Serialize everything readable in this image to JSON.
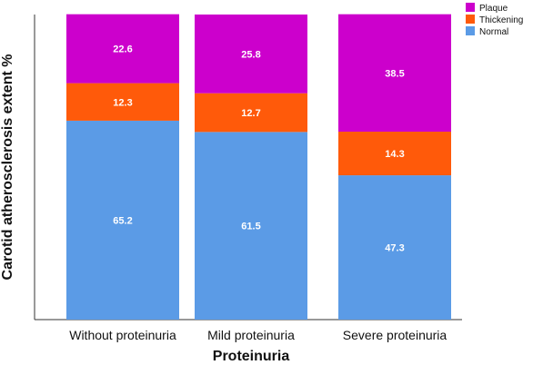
{
  "chart_data": {
    "type": "bar",
    "stacked": true,
    "categories": [
      "Without proteinuria",
      "Mild proteinuria",
      "Severe proteinuria"
    ],
    "series": [
      {
        "name": "Normal",
        "values": [
          65.2,
          61.5,
          47.3
        ],
        "color": "#5b9be6"
      },
      {
        "name": "Thickening",
        "values": [
          12.3,
          12.7,
          14.3
        ],
        "color": "#ff5a0a"
      },
      {
        "name": "Plaque",
        "values": [
          22.6,
          25.8,
          38.5
        ],
        "color": "#cc00cc"
      }
    ],
    "xlabel": "Proteinuria",
    "ylabel": "Carotid atherosclerosis extent %",
    "ylim": [
      0,
      100
    ],
    "grid": false,
    "legend": {
      "placement": "top-right",
      "items": [
        "Plaque",
        "Thickening",
        "Normal"
      ]
    }
  }
}
